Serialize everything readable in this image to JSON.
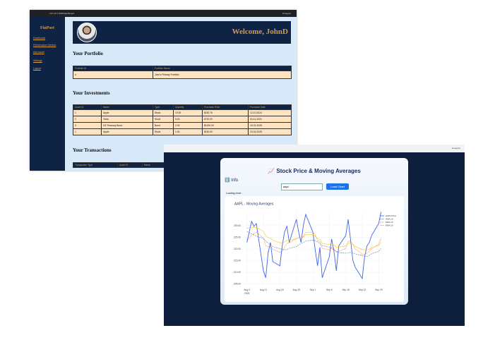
{
  "back_window": {
    "url": "127.0.0.1:5000/dashboard",
    "tab_label": "Incognito",
    "sidebar": {
      "brand": "FinPort",
      "links": [
        "Dashboard",
        "Performance Metrics",
        "Add Asset",
        "Settings",
        "Logout"
      ]
    },
    "header": {
      "welcome": "Welcome, JohnD"
    },
    "portfolio": {
      "title": "Your Portfolio",
      "columns": [
        "Portfolio ID",
        "Portfolio Name"
      ],
      "rows": [
        [
          "4",
          "John's Primary Portfolio"
        ]
      ]
    },
    "investments": {
      "title": "Your Investments",
      "columns": [
        "Asset ID",
        "Name",
        "Type",
        "Quantity",
        "Purchase Price",
        "Purchase Date"
      ],
      "rows": [
        [
          "1",
          "Apple",
          "Stock",
          "10.00",
          "$150.75",
          "12-10-2024"
        ],
        [
          "2",
          "Tesla",
          "Stock",
          "5.00",
          "$720.00",
          "02-11-2024"
        ],
        [
          "3",
          "US Treasury Bond",
          "Bond",
          "2.00",
          "$1000.00",
          "15-01-2025"
        ],
        [
          "1",
          "Apple",
          "Stock",
          "1.00",
          "$180.00",
          "23-04-2025"
        ]
      ]
    },
    "transactions": {
      "title": "Your Transactions",
      "columns": [
        "Transaction Type",
        "Asset ID",
        "Name",
        "Quantity",
        "Amount",
        "Transaction Date"
      ],
      "rows": []
    }
  },
  "front_window": {
    "tab_label": "Incognito",
    "title": "📈 Stock Price & Moving Averages",
    "info_label": "ℹ️ Info",
    "input_value": "aapl",
    "button": "Load Chart",
    "status": "Loading chart...",
    "chart_data": {
      "type": "line",
      "title": "AAPL - Moving Averages",
      "x": [
        "2025-08-04",
        "2025-08-05",
        "2025-08-06",
        "2025-08-07",
        "2025-08-08",
        "2025-08-11",
        "2025-08-12",
        "2025-08-13",
        "2025-08-14",
        "2025-08-15",
        "2025-08-18",
        "2025-08-19",
        "2025-08-20",
        "2025-08-21",
        "2025-08-22",
        "2025-08-25",
        "2025-08-26",
        "2025-08-27",
        "2025-08-28",
        "2025-08-29",
        "2025-09-01",
        "2025-09-02",
        "2025-09-03",
        "2025-09-04",
        "2025-09-05",
        "2025-09-08",
        "2025-09-09",
        "2025-09-10",
        "2025-09-11",
        "2025-09-12",
        "2025-09-15",
        "2025-09-16",
        "2025-09-17",
        "2025-09-18",
        "2025-09-19",
        "2025-09-22",
        "2025-09-23",
        "2025-09-24",
        "2025-09-25",
        "2025-09-26",
        "2025-09-29",
        "2025-09-30"
      ],
      "xlim": [
        "2025-08-02",
        "2025-10-01"
      ],
      "xticks": [
        {
          "value": "2025-08-04",
          "label": "Aug 4"
        },
        {
          "value": "2025-08-11",
          "label": "Aug 11"
        },
        {
          "value": "2025-08-18",
          "label": "Aug 18"
        },
        {
          "value": "2025-08-25",
          "label": "Aug 25"
        },
        {
          "value": "2025-09-01",
          "label": "Sep 1"
        },
        {
          "value": "2025-09-08",
          "label": "Sep 8"
        },
        {
          "value": "2025-09-15",
          "label": "Sep 15"
        },
        {
          "value": "2025-09-22",
          "label": "Sep 22"
        },
        {
          "value": "2025-09-29",
          "label": "Sep 29"
        }
      ],
      "x_year_label": "2025",
      "ylim": [
        204,
        236
      ],
      "yticks": [
        {
          "value": 205,
          "label": "205.00"
        },
        {
          "value": 210,
          "label": "210.00"
        },
        {
          "value": 215,
          "label": "215.00"
        },
        {
          "value": 220,
          "label": "220.00"
        },
        {
          "value": 225,
          "label": "225.00"
        },
        {
          "value": 230,
          "label": "230.00"
        }
      ],
      "grid": true,
      "legend": "top-right",
      "series": [
        {
          "name": "AAPL Price",
          "color": "#4263eb",
          "dash": "solid",
          "values": [
            222.8,
            227.3,
            231.8,
            229.7,
            230.9,
            210.7,
            207.7,
            218.3,
            222.8,
            214.6,
            212.8,
            221.3,
            227.3,
            229.7,
            222.8,
            232.7,
            227.3,
            222.8,
            230.3,
            234.8,
            227.3,
            219.8,
            212.8,
            220.7,
            207.7,
            216.7,
            224.3,
            218.9,
            210.7,
            221.3,
            225.8,
            232.7,
            224.3,
            215.2,
            212.2,
            207.4,
            216.7,
            221.3,
            222.8,
            225.8,
            230.9,
            235.9
          ]
        },
        {
          "name": "SMA 10",
          "color": "#4f7f8f",
          "dash": "dash",
          "values": [
            227.5,
            227.0,
            226.5,
            226.0,
            225.5,
            224.5,
            223.5,
            222.5,
            221.8,
            221.0,
            220.2,
            219.8,
            219.6,
            219.8,
            220.3,
            221.0,
            221.8,
            222.3,
            222.8,
            223.4,
            223.8,
            223.6,
            223.0,
            222.4,
            221.5,
            220.8,
            220.2,
            219.6,
            219.0,
            218.5,
            218.2,
            218.3,
            218.6,
            218.4,
            217.9,
            217.2,
            216.8,
            216.8,
            217.2,
            218.0,
            219.0,
            220.2
          ]
        },
        {
          "name": "EMA 10",
          "color": "#e8590c",
          "dash": "dot",
          "values": [
            224.0,
            224.5,
            225.8,
            226.5,
            227.3,
            224.6,
            221.5,
            220.9,
            221.2,
            219.9,
            218.5,
            219.0,
            220.9,
            222.5,
            222.6,
            224.4,
            224.9,
            224.4,
            225.5,
            227.2,
            227.2,
            226.1,
            223.7,
            223.1,
            220.3,
            219.6,
            220.5,
            220.2,
            218.5,
            219.0,
            220.2,
            223.3,
            223.5,
            221.9,
            220.1,
            217.8,
            217.6,
            218.2,
            219.0,
            220.2,
            222.1,
            224.7
          ]
        },
        {
          "name": "EMA 20",
          "color": "#f5c518",
          "dash": "solid",
          "values": [
            229.0,
            228.8,
            229.1,
            229.2,
            229.3,
            227.5,
            225.6,
            224.9,
            224.7,
            223.7,
            222.7,
            222.6,
            223.1,
            223.7,
            223.6,
            224.5,
            224.8,
            224.6,
            225.2,
            226.1,
            226.2,
            225.6,
            224.4,
            224.0,
            222.4,
            221.9,
            222.1,
            221.8,
            220.7,
            220.8,
            221.3,
            222.4,
            222.6,
            222.0,
            221.1,
            219.8,
            219.5,
            219.7,
            220.0,
            220.6,
            221.5,
            222.9
          ]
        }
      ]
    }
  }
}
